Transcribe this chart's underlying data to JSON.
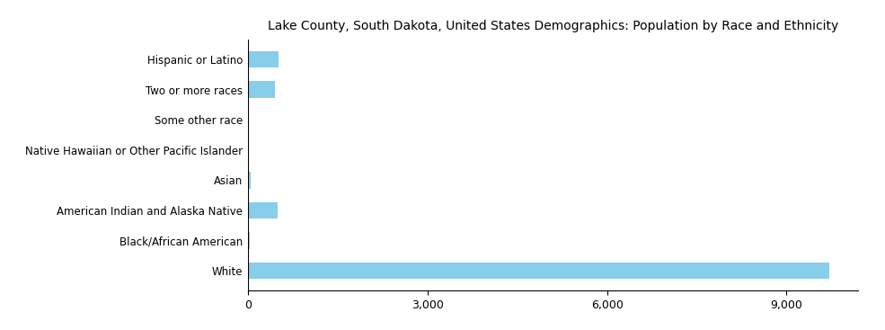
{
  "title": "Lake County, South Dakota, United States Demographics: Population by Race and Ethnicity",
  "categories": [
    "White",
    "Black/African American",
    "American Indian and Alaska Native",
    "Asian",
    "Native Hawaiian or Other Pacific Islander",
    "Some other race",
    "Two or more races",
    "Hispanic or Latino"
  ],
  "values": [
    9706,
    35,
    497,
    42,
    8,
    18,
    455,
    520
  ],
  "bar_color": "#87CEEB",
  "xlim": [
    0,
    10200
  ],
  "xticks": [
    0,
    3000,
    6000,
    9000
  ],
  "xlabel": "",
  "ylabel": "",
  "figsize": [
    9.85,
    3.67
  ],
  "dpi": 100,
  "title_fontsize": 10,
  "tick_fontsize": 9,
  "label_fontsize": 8.5
}
